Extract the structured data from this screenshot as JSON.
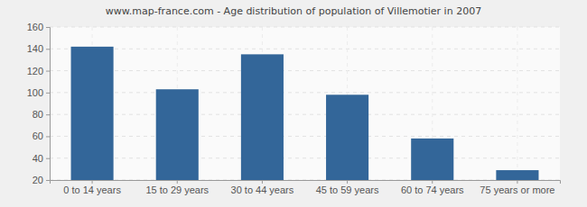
{
  "chart_data": {
    "type": "bar",
    "title": "www.map-france.com - Age distribution of population of Villemotier in 2007",
    "categories": [
      "0 to 14 years",
      "15 to 29 years",
      "30 to 44 years",
      "45 to 59 years",
      "60 to 74 years",
      "75 years or more"
    ],
    "values": [
      142,
      103,
      135,
      98,
      58,
      29
    ],
    "color": "#336699",
    "ylim": [
      20,
      160
    ],
    "yticks": [
      20,
      40,
      60,
      80,
      100,
      120,
      140,
      160
    ],
    "grid": true
  }
}
